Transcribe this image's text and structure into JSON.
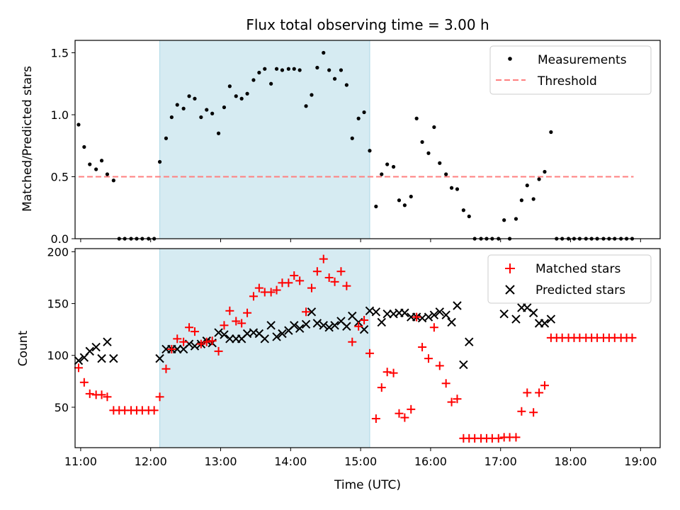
{
  "chart_data": [
    {
      "type": "scatter",
      "title": "Flux total observing time = 3.00 h",
      "xlabel": "",
      "ylabel": "Matched/Predicted stars",
      "ylim": [
        0,
        1.6
      ],
      "yticks": [
        0.0,
        0.5,
        1.0,
        1.5
      ],
      "ytick_labels": [
        "0.0",
        "0.5",
        "1.0",
        "1.5"
      ],
      "xlim": [
        10.92,
        19.28
      ],
      "shaded_span": [
        12.13,
        15.13
      ],
      "shade_color": "#add8e6",
      "threshold": {
        "name": "Threshold",
        "value": 0.5,
        "x_range": [
          10.97,
          18.9
        ],
        "color": "#ff7f7f"
      },
      "legend": [
        "Measurements",
        "Threshold"
      ],
      "legend_position": "upper right",
      "series": [
        {
          "name": "Measurements",
          "color": "#000000",
          "marker": "dot",
          "x": [
            10.97,
            11.05,
            11.13,
            11.22,
            11.3,
            11.38,
            11.47,
            11.55,
            11.63,
            11.72,
            11.8,
            11.88,
            11.97,
            12.05,
            12.13,
            12.22,
            12.3,
            12.38,
            12.47,
            12.55,
            12.63,
            12.72,
            12.8,
            12.88,
            12.97,
            13.05,
            13.13,
            13.22,
            13.3,
            13.38,
            13.47,
            13.55,
            13.63,
            13.72,
            13.8,
            13.88,
            13.97,
            14.05,
            14.13,
            14.22,
            14.3,
            14.38,
            14.47,
            14.55,
            14.63,
            14.72,
            14.8,
            14.88,
            14.97,
            15.05,
            15.13,
            15.22,
            15.3,
            15.38,
            15.47,
            15.55,
            15.63,
            15.72,
            15.8,
            15.88,
            15.97,
            16.05,
            16.13,
            16.22,
            16.3,
            16.38,
            16.47,
            16.55,
            16.63,
            16.72,
            16.8,
            16.88,
            16.97,
            17.05,
            17.13,
            17.22,
            17.3,
            17.38,
            17.47,
            17.55,
            17.63,
            17.72,
            17.8,
            17.88,
            17.97,
            18.05,
            18.13,
            18.22,
            18.3,
            18.38,
            18.47,
            18.55,
            18.63,
            18.72,
            18.8,
            18.88
          ],
          "y": [
            0.92,
            0.74,
            0.6,
            0.56,
            0.63,
            0.52,
            0.47,
            0,
            0,
            0,
            0,
            0,
            0,
            0,
            0.62,
            0.81,
            0.98,
            1.08,
            1.05,
            1.15,
            1.13,
            0.98,
            1.04,
            1.01,
            0.85,
            1.06,
            1.23,
            1.15,
            1.13,
            1.17,
            1.28,
            1.34,
            1.37,
            1.25,
            1.37,
            1.36,
            1.37,
            1.37,
            1.36,
            1.07,
            1.16,
            1.38,
            1.5,
            1.36,
            1.29,
            1.36,
            1.24,
            0.81,
            0.97,
            1.02,
            0.71,
            0.26,
            0.52,
            0.6,
            0.58,
            0.31,
            0.27,
            0.34,
            0.97,
            0.78,
            0.69,
            0.9,
            0.61,
            0.52,
            0.41,
            0.4,
            0.23,
            0.18,
            0,
            0,
            0,
            0,
            0,
            0.15,
            0,
            0.16,
            0.31,
            0.43,
            0.32,
            0.48,
            0.54,
            0.86,
            0,
            0,
            0,
            0,
            0,
            0,
            0,
            0,
            0,
            0,
            0,
            0,
            0,
            0
          ]
        }
      ]
    },
    {
      "type": "scatter",
      "title": "",
      "xlabel": "Time (UTC)",
      "ylabel": "Count",
      "ylim": [
        11,
        203
      ],
      "yticks": [
        50,
        100,
        150,
        200
      ],
      "ytick_labels": [
        "50",
        "100",
        "150",
        "200"
      ],
      "xlim": [
        10.92,
        19.28
      ],
      "xticks": [
        11,
        12,
        13,
        14,
        15,
        16,
        17,
        18,
        19
      ],
      "xtick_labels": [
        "11:00",
        "12:00",
        "13:00",
        "14:00",
        "15:00",
        "16:00",
        "17:00",
        "18:00",
        "19:00"
      ],
      "shaded_span": [
        12.13,
        15.13
      ],
      "shade_color": "#add8e6",
      "legend": [
        "Matched stars",
        "Predicted stars"
      ],
      "legend_position": "upper right",
      "series": [
        {
          "name": "Matched stars",
          "color": "#ff0000",
          "marker": "plus",
          "x": [
            10.97,
            11.05,
            11.13,
            11.22,
            11.3,
            11.38,
            11.47,
            11.55,
            11.63,
            11.72,
            11.8,
            11.88,
            11.97,
            12.05,
            12.13,
            12.22,
            12.3,
            12.38,
            12.47,
            12.55,
            12.63,
            12.72,
            12.8,
            12.88,
            12.97,
            13.05,
            13.13,
            13.22,
            13.3,
            13.38,
            13.47,
            13.55,
            13.63,
            13.72,
            13.8,
            13.88,
            13.97,
            14.05,
            14.13,
            14.22,
            14.3,
            14.38,
            14.47,
            14.55,
            14.63,
            14.72,
            14.8,
            14.88,
            14.97,
            15.05,
            15.13,
            15.22,
            15.3,
            15.38,
            15.47,
            15.55,
            15.63,
            15.72,
            15.8,
            15.88,
            15.97,
            16.05,
            16.13,
            16.22,
            16.3,
            16.38,
            16.47,
            16.55,
            16.63,
            16.72,
            16.8,
            16.88,
            16.97,
            17.05,
            17.13,
            17.22,
            17.3,
            17.38,
            17.47,
            17.55,
            17.63,
            17.72,
            17.8,
            17.88,
            17.97,
            18.05,
            18.13,
            18.22,
            18.3,
            18.38,
            18.47,
            18.55,
            18.63,
            18.72,
            18.8,
            18.88
          ],
          "y": [
            88,
            74,
            63,
            62,
            62,
            60,
            47,
            47,
            47,
            47,
            47,
            47,
            47,
            47,
            60,
            87,
            106,
            116,
            113,
            127,
            123,
            111,
            113,
            114,
            104,
            129,
            143,
            133,
            131,
            141,
            157,
            165,
            161,
            161,
            163,
            170,
            170,
            177,
            172,
            142,
            165,
            181,
            193,
            175,
            171,
            181,
            167,
            113,
            128,
            134,
            102,
            39,
            69,
            84,
            83,
            44,
            40,
            48,
            137,
            108,
            97,
            127,
            90,
            73,
            55,
            58,
            20,
            20,
            20,
            20,
            20,
            20,
            20,
            21,
            21,
            21,
            46,
            64,
            45,
            64,
            71,
            117,
            117,
            117,
            117,
            117,
            117,
            117,
            117,
            117,
            117,
            117,
            117,
            117,
            117,
            117
          ]
        },
        {
          "name": "Predicted stars",
          "color": "#000000",
          "marker": "x",
          "x": [
            10.97,
            11.05,
            11.13,
            11.22,
            11.3,
            11.38,
            11.47,
            12.13,
            12.22,
            12.3,
            12.38,
            12.47,
            12.55,
            12.63,
            12.72,
            12.8,
            12.88,
            12.97,
            13.05,
            13.13,
            13.22,
            13.3,
            13.38,
            13.47,
            13.55,
            13.63,
            13.72,
            13.8,
            13.88,
            13.97,
            14.05,
            14.13,
            14.22,
            14.3,
            14.38,
            14.47,
            14.55,
            14.63,
            14.72,
            14.8,
            14.88,
            14.97,
            15.05,
            15.13,
            15.22,
            15.3,
            15.38,
            15.47,
            15.55,
            15.63,
            15.72,
            15.8,
            15.88,
            15.97,
            16.05,
            16.13,
            16.22,
            16.3,
            16.38,
            16.47,
            16.55,
            17.05,
            17.22,
            17.3,
            17.38,
            17.47,
            17.55,
            17.63,
            17.72
          ],
          "y": [
            95,
            98,
            104,
            108,
            97,
            113,
            97,
            97,
            106,
            106,
            106,
            106,
            111,
            109,
            111,
            114,
            112,
            122,
            120,
            116,
            116,
            116,
            121,
            122,
            121,
            116,
            129,
            118,
            121,
            124,
            129,
            126,
            130,
            142,
            131,
            129,
            127,
            129,
            133,
            128,
            138,
            132,
            125,
            143,
            142,
            132,
            140,
            140,
            141,
            141,
            137,
            137,
            136,
            137,
            139,
            142,
            139,
            132,
            148,
            91,
            113,
            140,
            135,
            146,
            146,
            141,
            131,
            131,
            135
          ]
        }
      ]
    }
  ]
}
